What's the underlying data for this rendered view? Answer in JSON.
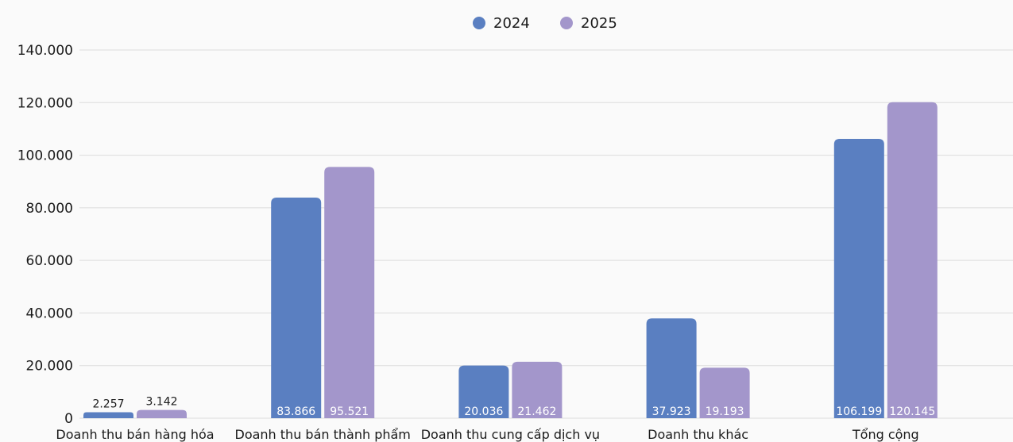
{
  "chart_data": {
    "type": "bar",
    "categories": [
      "Doanh thu bán hàng hóa",
      "Doanh thu bán thành phẩm",
      "Doanh thu cung cấp dịch vụ",
      "Doanh thu khác",
      "Tổng cộng"
    ],
    "series": [
      {
        "name": "2024",
        "values": [
          2257,
          83866,
          20036,
          37923,
          106199
        ],
        "labels": [
          "2.257",
          "83.866",
          "20.036",
          "37.923",
          "106.199"
        ],
        "color": "#5a7fc1"
      },
      {
        "name": "2025",
        "values": [
          3142,
          95521,
          21462,
          19193,
          120145
        ],
        "labels": [
          "3.142",
          "95.521",
          "21.462",
          "19.193",
          "120.145"
        ],
        "color": "#a396cb"
      }
    ],
    "y_ticks": [
      {
        "value": 0,
        "label": "0"
      },
      {
        "value": 20000,
        "label": "20.000"
      },
      {
        "value": 40000,
        "label": "40.000"
      },
      {
        "value": 60000,
        "label": "60.000"
      },
      {
        "value": 80000,
        "label": "80.000"
      },
      {
        "value": 100000,
        "label": "100.000"
      },
      {
        "value": 120000,
        "label": "120.000"
      },
      {
        "value": 140000,
        "label": "140.000"
      }
    ],
    "ylim": [
      0,
      140000
    ],
    "title": "",
    "xlabel": "",
    "ylabel": "",
    "grid": true,
    "legend_position": "top-center",
    "gridline_color": "#dcdcdc"
  }
}
